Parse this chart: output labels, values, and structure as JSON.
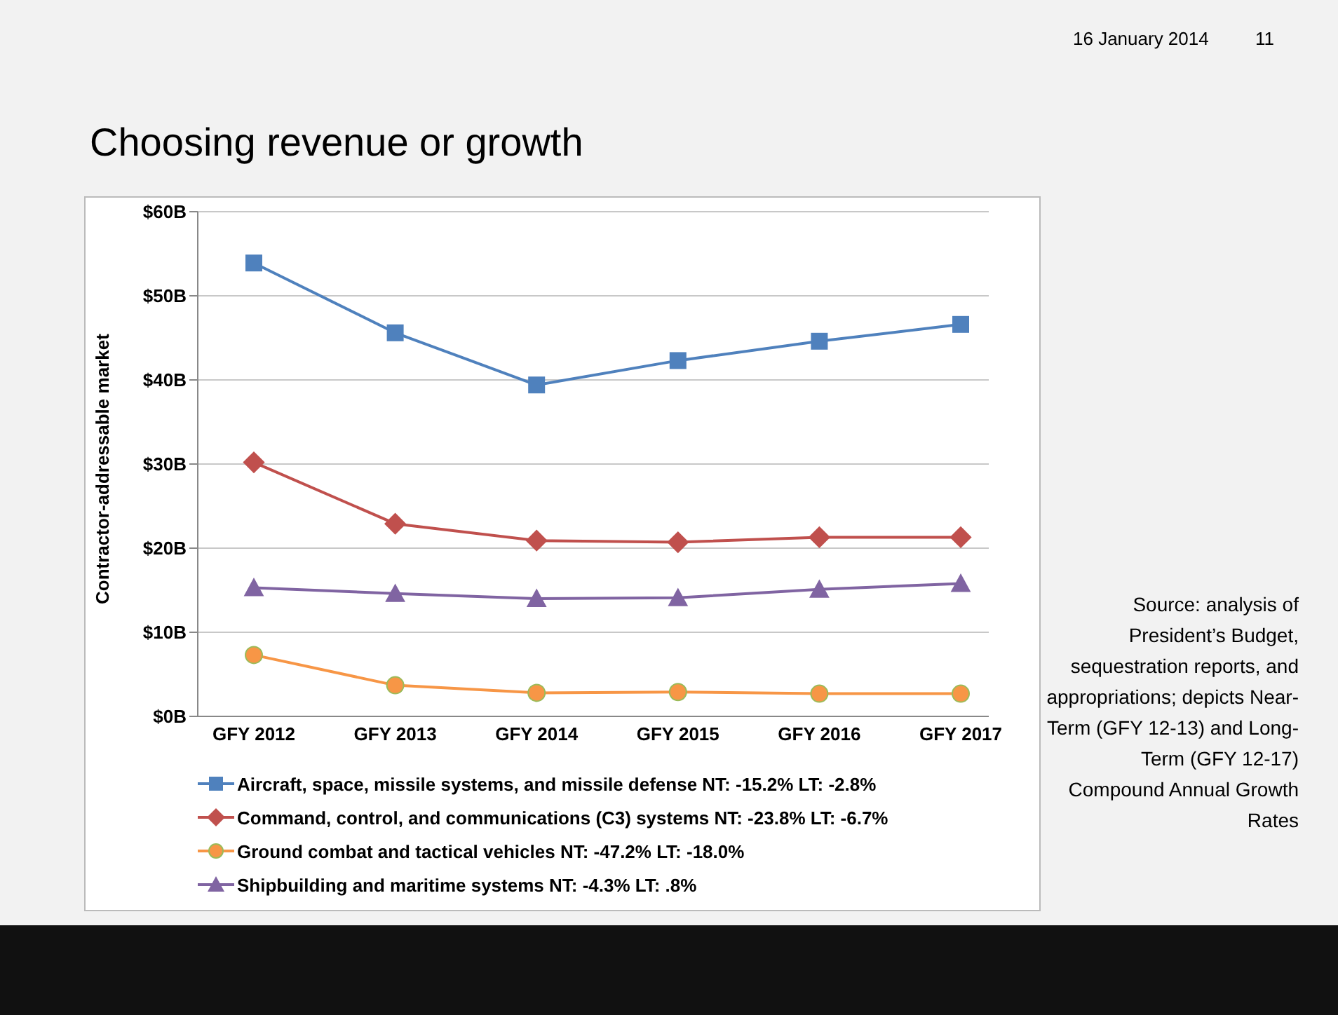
{
  "chart_data": {
    "type": "line",
    "title": "Choosing revenue or growth",
    "ylabel": "Contractor-addressable  market",
    "categories": [
      "GFY 2012",
      "GFY 2013",
      "GFY 2014",
      "GFY 2015",
      "GFY 2016",
      "GFY 2017"
    ],
    "series": [
      {
        "name": "Aircraft, space, missile systems, and missile defense NT: -15.2% LT: -2.8%",
        "color": "#4f81bd",
        "marker": "square",
        "values": [
          53.9,
          45.6,
          39.4,
          42.3,
          44.6,
          46.6
        ]
      },
      {
        "name": "Command, control, and communications (C3) systems NT: -23.8% LT: -6.7%",
        "color": "#c0504d",
        "marker": "diamond",
        "values": [
          30.2,
          22.9,
          20.9,
          20.7,
          21.3,
          21.3
        ]
      },
      {
        "name": "Ground combat and tactical vehicles NT: -47.2% LT: -18.0%",
        "color": "#f79646",
        "marker": "circle",
        "values": [
          7.3,
          3.7,
          2.8,
          2.9,
          2.7,
          2.7
        ]
      },
      {
        "name": "Shipbuilding and maritime systems NT: -4.3% LT: .8%",
        "color": "#8064a2",
        "marker": "triangle",
        "values": [
          15.3,
          14.6,
          14.0,
          14.1,
          15.1,
          15.8
        ]
      }
    ],
    "ylim": [
      0,
      60
    ],
    "yticks": [
      {
        "value": 0,
        "label": "$0B"
      },
      {
        "value": 10,
        "label": "$10B"
      },
      {
        "value": 20,
        "label": "$20B"
      },
      {
        "value": 30,
        "label": "$30B"
      },
      {
        "value": 40,
        "label": "$40B"
      },
      {
        "value": 50,
        "label": "$50B"
      },
      {
        "value": 60,
        "label": "$60B"
      }
    ],
    "grid": "y",
    "legend": "bottom",
    "annotations": [
      "16 January 2014",
      "11",
      "Source: analysis of President’s Budget, sequestration reports, and appropriations; depicts Near-Term (GFY 12-13) and Long-Term (GFY 12-17) Compound Annual Growth Rates"
    ]
  }
}
